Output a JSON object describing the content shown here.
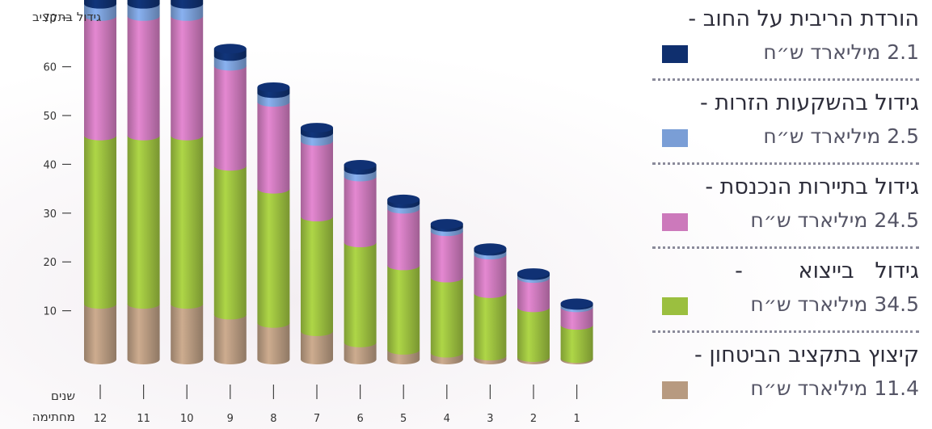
{
  "chart_data": {
    "type": "bar",
    "stacked": true,
    "ylabel": "גידול בתקציב",
    "xlabel": [
      "שנים",
      "מחתימה"
    ],
    "ylim": [
      0,
      70
    ],
    "yticks": [
      10,
      20,
      30,
      40,
      50,
      60,
      70
    ],
    "categories": [
      "12",
      "11",
      "10",
      "9",
      "8",
      "7",
      "6",
      "5",
      "4",
      "3",
      "2",
      "1"
    ],
    "series": [
      {
        "name": "קיצוץ בתקציב הביטחון",
        "color": "#b79a80",
        "values": [
          11.4,
          11.4,
          11.4,
          9.2,
          7.5,
          5.8,
          3.5,
          2.0,
          1.4,
          0.8,
          0.5,
          0.3
        ]
      },
      {
        "name": "גידול בייצוא",
        "color": "#9bbf3f",
        "values": [
          34.5,
          34.5,
          34.5,
          30.5,
          27.5,
          23.5,
          20.5,
          17.3,
          15.4,
          12.8,
          10.2,
          6.8
        ]
      },
      {
        "name": "גידול בתיירות הנכנסת",
        "color": "#cc79bb",
        "values": [
          24.5,
          24.5,
          24.5,
          20.5,
          17.8,
          15.5,
          13.5,
          11.6,
          9.5,
          7.9,
          6.0,
          3.6
        ]
      },
      {
        "name": "גידול בהשקעות הזרות",
        "color": "#7a9ed6",
        "values": [
          2.5,
          2.5,
          2.5,
          2.0,
          1.8,
          1.6,
          1.4,
          1.1,
          0.9,
          0.8,
          0.6,
          0.5
        ]
      },
      {
        "name": "הורדת הריבית על החוב",
        "color": "#0f2f6e",
        "values": [
          2.1,
          2.1,
          2.1,
          1.5,
          1.2,
          1.1,
          1.0,
          0.8,
          0.6,
          0.5,
          0.4,
          0.3
        ]
      }
    ]
  },
  "legend": [
    {
      "title": "הורדת הריבית על החוב -",
      "value": "2.1 מיליארד ש״ח",
      "color": "#0f2f6e"
    },
    {
      "title": "גידול בהשקעות הזרות -",
      "value": "2.5 מיליארד ש״ח",
      "color": "#7a9ed6"
    },
    {
      "title": "גידול בתיירות הנכנסת -",
      "value": "24.5 מיליארד ש״ח",
      "color": "#cc79bb"
    },
    {
      "title": "גידול   בייצוא        -",
      "value": "34.5 מיליארד ש״ח",
      "color": "#9bbf3f"
    },
    {
      "title": "קיצוץ בתקציב הביטחון -",
      "value": "11.4 מיליארד ש״ח",
      "color": "#b79a80"
    }
  ]
}
